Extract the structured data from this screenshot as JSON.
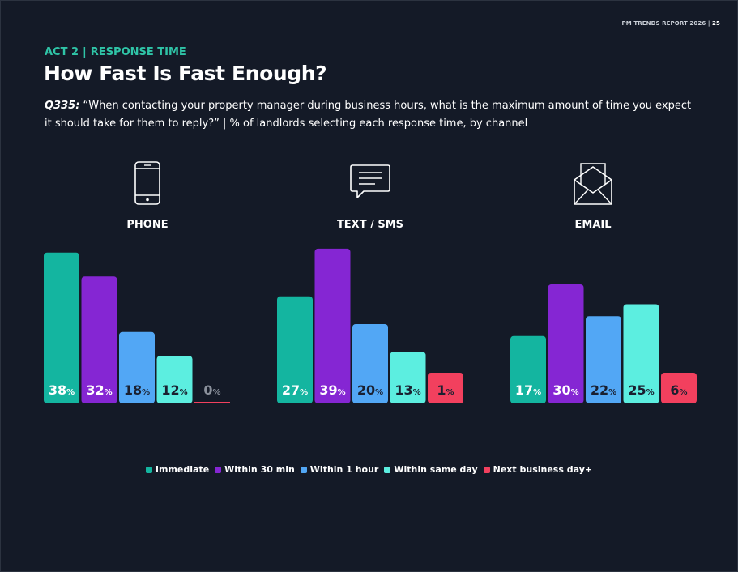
{
  "header": {
    "report_tag": "PM TRENDS REPORT 2026 |",
    "page_number": "25",
    "act": "ACT 2",
    "section": "RESPONSE TIME",
    "title": "How Fast Is Fast Enough?",
    "question_id": "Q335:",
    "question_text": "“When contacting your property manager during business hours, what is the maximum amount of time you expect it should take for them to reply?” | % of landlords selecting each response time, by channel"
  },
  "channels": [
    {
      "label": "PHONE",
      "icon": "phone-icon"
    },
    {
      "label": "TEXT / SMS",
      "icon": "message-icon"
    },
    {
      "label": "EMAIL",
      "icon": "envelope-icon"
    }
  ],
  "chart_data": {
    "type": "bar",
    "categories": [
      "PHONE",
      "TEXT / SMS",
      "EMAIL"
    ],
    "unit": "%",
    "ylim": [
      0,
      40
    ],
    "grid": false,
    "legend_position": "bottom-center",
    "series": [
      {
        "name": "Immediate",
        "color": "#14b5a0",
        "values": [
          38,
          27,
          17
        ]
      },
      {
        "name": "Within 30 min",
        "color": "#8526d3",
        "values": [
          32,
          39,
          30
        ]
      },
      {
        "name": "Within 1 hour",
        "color": "#52a7f5",
        "values": [
          18,
          20,
          22
        ]
      },
      {
        "name": "Within same day",
        "color": "#5ceee0",
        "values": [
          12,
          13,
          25
        ]
      },
      {
        "name": "Next business day+",
        "color": "#f2405e",
        "values": [
          0,
          1,
          6
        ]
      }
    ]
  }
}
